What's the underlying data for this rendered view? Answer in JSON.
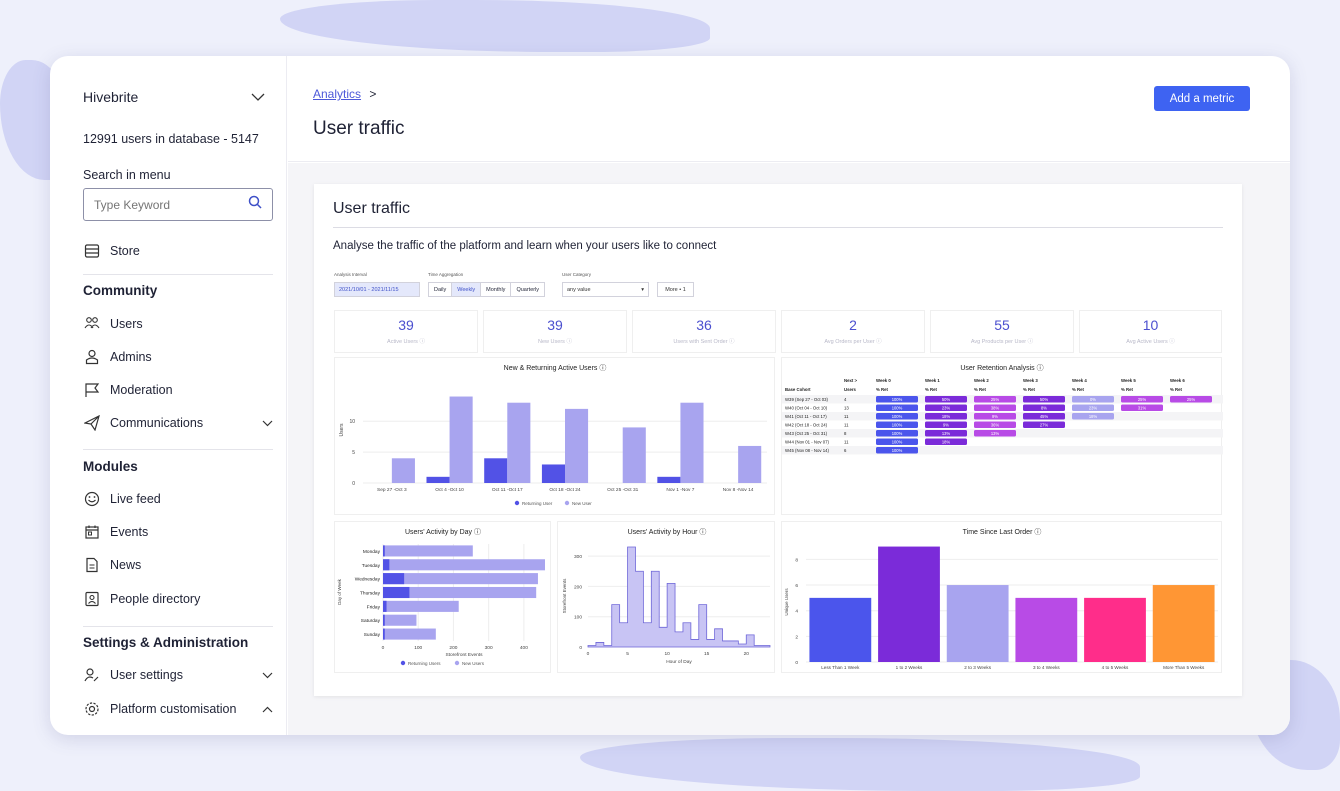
{
  "sidebar": {
    "org": "Hivebrite",
    "count": "12991 users in database - 5147",
    "search_label": "Search in menu",
    "search_placeholder": "Type Keyword",
    "store": "Store",
    "community": "Community",
    "users": "Users",
    "admins": "Admins",
    "moderation": "Moderation",
    "communications": "Communications",
    "modules": "Modules",
    "live_feed": "Live feed",
    "events": "Events",
    "news": "News",
    "people_directory": "People directory",
    "settings_admin": "Settings & Administration",
    "user_settings": "User settings",
    "platform_custom": "Platform customisation"
  },
  "header": {
    "breadcrumb": "Analytics",
    "crumb_sep": ">",
    "title": "User traffic",
    "add_metric": "Add a metric"
  },
  "card": {
    "title": "User traffic",
    "desc": "Analyse the traffic of the platform and learn when your users like to connect"
  },
  "filters": {
    "interval_label": "Analysis Interval",
    "interval": "2021/10/01 - 2021/11/15",
    "agg_label": "Time Aggregation",
    "agg": [
      "Daily",
      "Weekly",
      "Monthly",
      "Quarterly"
    ],
    "cat_label": "User Category",
    "cat": "any value",
    "more": "More • 1"
  },
  "kpis": [
    {
      "value": "39",
      "label": "Active Users ⓘ"
    },
    {
      "value": "39",
      "label": "New Users ⓘ"
    },
    {
      "value": "36",
      "label": "Users with Sent Order ⓘ"
    },
    {
      "value": "2",
      "label": "Avg Orders per User ⓘ"
    },
    {
      "value": "55",
      "label": "Avg Products per User ⓘ"
    },
    {
      "value": "10",
      "label": "Avg Active Users ⓘ"
    }
  ],
  "colors": {
    "accent": "#3e63f2",
    "dark_bar": "#5252e6",
    "light_bar": "#a8a4ef",
    "purple": "#7b2bd9",
    "violet": "#b84be6",
    "pink": "#ff2d8a",
    "orange": "#ff9634",
    "blue": "#4b55ec"
  },
  "chart_data": [
    {
      "type": "bar",
      "title": "New & Returning Active Users ⓘ",
      "ylabel": "Users",
      "categories": [
        "Sep 27 -Oct 3",
        "Oct 4 -Oct 10",
        "Oct 11 -Oct 17",
        "Oct 18 -Oct 24",
        "Oct 25 -Oct 31",
        "Nov 1 -Nov 7",
        "Nov 8 -Nov 14"
      ],
      "yticks": [
        "0",
        "5",
        "10"
      ],
      "ylim": [
        0,
        17
      ],
      "series": [
        {
          "name": "Returning User",
          "values": [
            0,
            1,
            4,
            3,
            0,
            1,
            0
          ]
        },
        {
          "name": "New User",
          "values": [
            4,
            14,
            13,
            12,
            9,
            13,
            6
          ]
        }
      ]
    },
    {
      "type": "table",
      "title": "User Retention Analysis ⓘ",
      "header": [
        "Next >",
        "Week 0",
        "Week 1",
        "Week 2",
        "Week 3",
        "Week 4",
        "Week 5",
        "Week 6"
      ],
      "subheader": [
        "Users",
        "% Ret",
        "% Ret",
        "% Ret",
        "% Ret",
        "% Ret",
        "% Ret",
        "% Ret"
      ],
      "rows": [
        {
          "cohort": "W39 (Sep 27 - Oct 03)",
          "users": "4",
          "cells": [
            "100%",
            "50%",
            "25%",
            "50%",
            "0%",
            "25%",
            "25%"
          ]
        },
        {
          "cohort": "W40 (Oct 04 - Oct 10)",
          "users": "13",
          "cells": [
            "100%",
            "23%",
            "38%",
            "8%",
            "23%",
            "31%",
            ""
          ]
        },
        {
          "cohort": "W41 (Oct 11 - Oct 17)",
          "users": "11",
          "cells": [
            "100%",
            "18%",
            "9%",
            "45%",
            "18%",
            "",
            ""
          ]
        },
        {
          "cohort": "W42 (Oct 18 - Oct 24)",
          "users": "11",
          "cells": [
            "100%",
            "9%",
            "36%",
            "27%",
            "",
            "",
            ""
          ]
        },
        {
          "cohort": "W43 (Oct 25 - Oct 31)",
          "users": "8",
          "cells": [
            "100%",
            "13%",
            "13%",
            "",
            "",
            "",
            ""
          ]
        },
        {
          "cohort": "W44 (Nov 01 - Nov 07)",
          "users": "11",
          "cells": [
            "100%",
            "18%",
            "",
            "",
            "",
            "",
            ""
          ]
        },
        {
          "cohort": "W45 (Nov 08 - Nov 14)",
          "users": "6",
          "cells": [
            "100%",
            "",
            "",
            "",
            "",
            "",
            ""
          ]
        }
      ],
      "row_header": "Base Cohort"
    },
    {
      "type": "bar",
      "orientation": "horizontal",
      "title": "Users' Activity by Day ⓘ",
      "xlabel": "Storefront Events",
      "ylabel": "Day of Week",
      "categories": [
        "Monday",
        "Tuesday",
        "Wednesday",
        "Thursday",
        "Friday",
        "Saturday",
        "Sunday"
      ],
      "xticks": [
        "0",
        "100",
        "200",
        "300",
        "400"
      ],
      "xlim": [
        0,
        460
      ],
      "series": [
        {
          "name": "Returning Users",
          "values": [
            5,
            18,
            60,
            75,
            10,
            5,
            5
          ]
        },
        {
          "name": "New Users",
          "values": [
            255,
            460,
            440,
            435,
            215,
            95,
            150
          ]
        }
      ]
    },
    {
      "type": "area",
      "title": "Users' Activity by Hour ⓘ",
      "xlabel": "Hour of Day",
      "ylabel": "Storefront Events",
      "xticks": [
        "0",
        "5",
        "10",
        "15",
        "20"
      ],
      "yticks": [
        "0",
        "100",
        "200",
        "300"
      ],
      "xlim": [
        0,
        23
      ],
      "ylim": [
        0,
        340
      ],
      "x": [
        0,
        1,
        2,
        3,
        4,
        5,
        6,
        7,
        8,
        9,
        10,
        11,
        12,
        13,
        14,
        15,
        16,
        17,
        18,
        19,
        20,
        21,
        22,
        23
      ],
      "values": [
        5,
        15,
        5,
        140,
        80,
        330,
        250,
        80,
        250,
        65,
        210,
        50,
        80,
        25,
        140,
        25,
        60,
        20,
        20,
        10,
        40,
        5,
        5,
        5
      ]
    },
    {
      "type": "bar",
      "title": "Time Since Last Order ⓘ",
      "ylabel": "Unique Users",
      "categories": [
        "Less Than 1 Week",
        "1 to 2 Weeks",
        "2 to 3 Weeks",
        "3 to 4 Weeks",
        "4 to 5 Weeks",
        "More Than 5 Weeks"
      ],
      "yticks": [
        "0",
        "2",
        "4",
        "6",
        "8"
      ],
      "ylim": [
        0,
        9.2
      ],
      "values": [
        5,
        9,
        6,
        5,
        5,
        6
      ],
      "colors": [
        "#4b55ec",
        "#7b2bd9",
        "#a8a4ef",
        "#b84be6",
        "#ff2d8a",
        "#ff9634"
      ]
    }
  ]
}
